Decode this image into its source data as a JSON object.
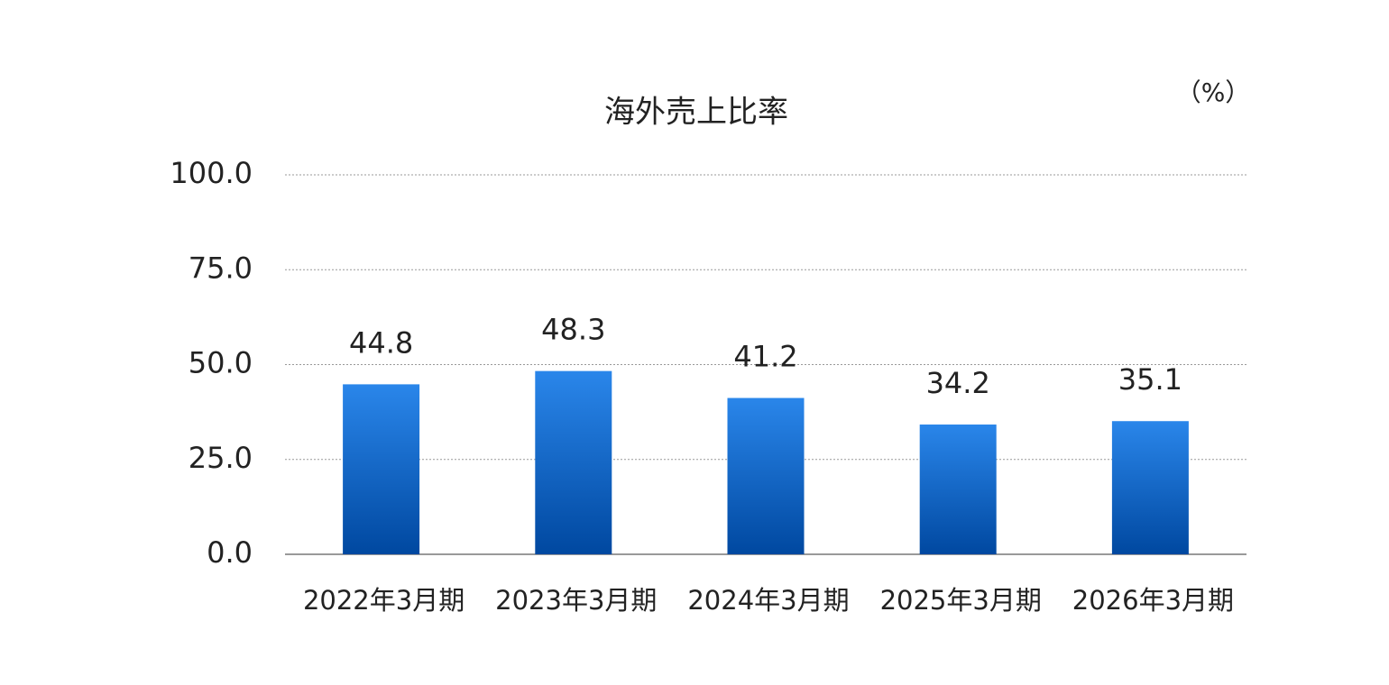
{
  "chart_data": {
    "type": "bar",
    "title": "海外売上比率",
    "unit": "（%）",
    "categories": [
      "2022年3月期",
      "2023年3月期",
      "2024年3月期",
      "2025年3月期",
      "2026年3月期"
    ],
    "values": [
      44.8,
      48.3,
      41.2,
      34.2,
      35.1
    ],
    "colors": [
      "#2a86ea",
      "#0048a0"
    ],
    "ylim": [
      0,
      100
    ],
    "yticks": [
      {
        "value": 0,
        "label": "0.0"
      },
      {
        "value": 25,
        "label": "25.0"
      },
      {
        "value": 50,
        "label": "50.0"
      },
      {
        "value": 75,
        "label": "75.0"
      },
      {
        "value": 100,
        "label": "100.0"
      }
    ],
    "grid": true
  }
}
